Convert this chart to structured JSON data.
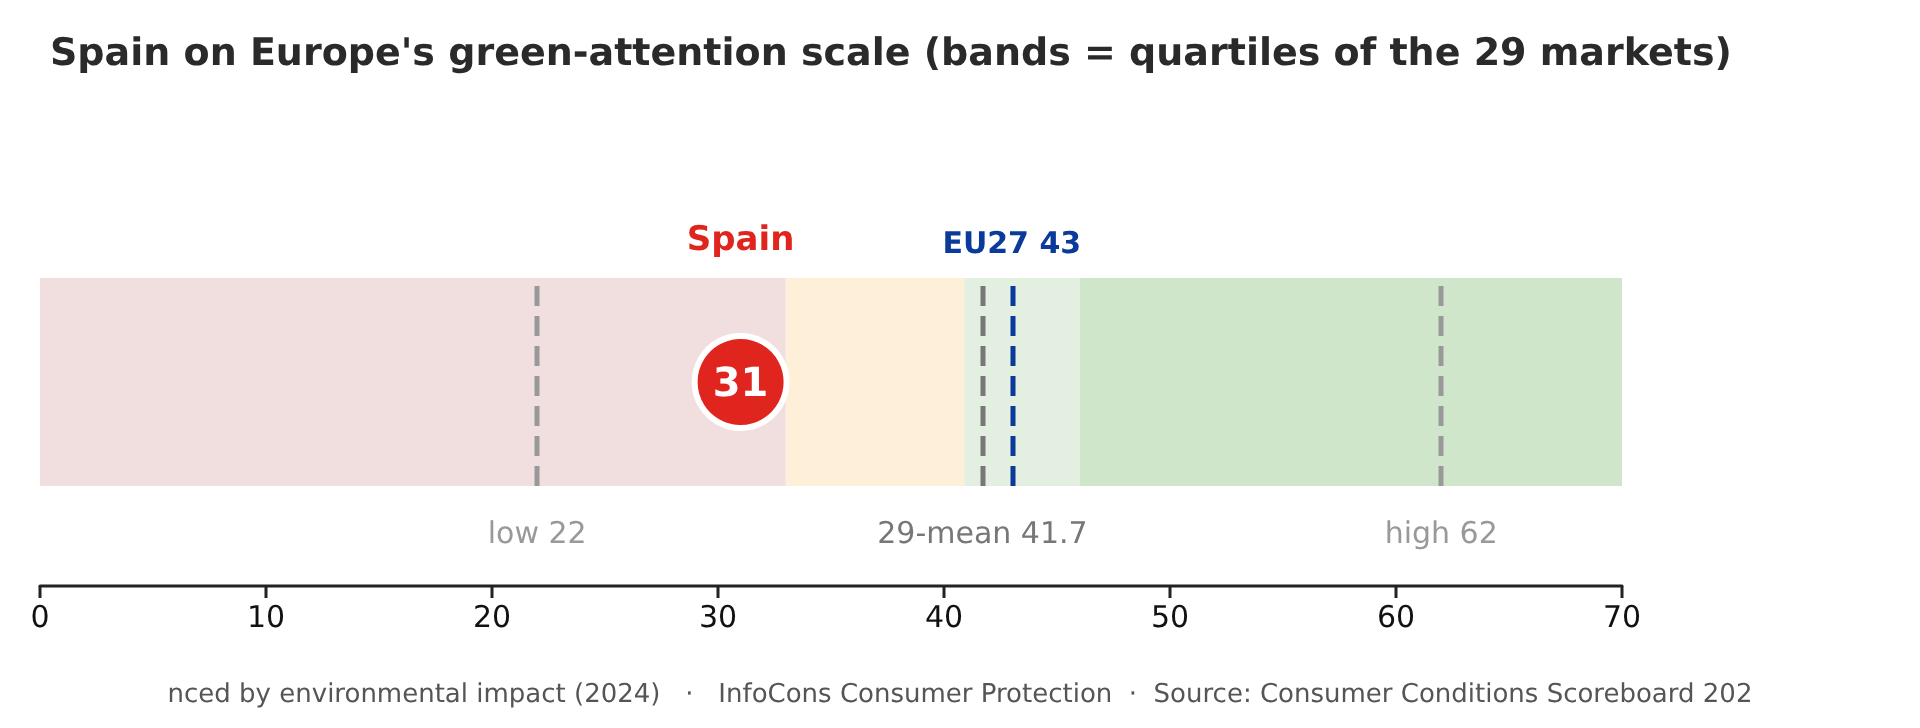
{
  "chart_data": {
    "type": "scatter",
    "title": "Spain on Europe's green-attention scale (bands = quartiles of the 29 markets)",
    "orientation": "horizontal",
    "categories": [
      null
    ],
    "series": [
      {
        "name": "Spain",
        "color": "#e0251f",
        "values": [
          31
        ]
      }
    ],
    "xlim": [
      0,
      70
    ],
    "xticks": [
      0,
      10,
      20,
      30,
      40,
      50,
      60,
      70
    ],
    "marker": "circle",
    "data_labels": true,
    "grid": false,
    "legend": false,
    "bands": [
      {
        "axis": "x",
        "from": 0,
        "to": 33,
        "color": "#f1dedf"
      },
      {
        "axis": "x",
        "from": 33,
        "to": 40.9,
        "color": "#fdefd8"
      },
      {
        "axis": "x",
        "from": 40.9,
        "to": 46,
        "color": "#e3efe0"
      },
      {
        "axis": "x",
        "from": 46,
        "to": 70,
        "color": "#cfe6ca"
      }
    ],
    "ref_lines": [
      {
        "axis": "x",
        "value": 22,
        "label": "low 22",
        "color": "#999999",
        "line_style": "dashed"
      },
      {
        "axis": "x",
        "value": 41.7,
        "label": "29-mean 41.7",
        "color": "#777777",
        "line_style": "dashed"
      },
      {
        "axis": "x",
        "value": 62,
        "label": "high 62",
        "color": "#999999",
        "line_style": "dashed"
      },
      {
        "axis": "x",
        "value": 43,
        "label": "EU27 43",
        "color": "#0a3a9a",
        "line_style": "dashed"
      }
    ],
    "annotations": [
      "nced by environmental impact (2024)   ·   InfoCons Consumer Protection  ·  Source: Consumer Conditions Scoreboard 202"
    ]
  }
}
